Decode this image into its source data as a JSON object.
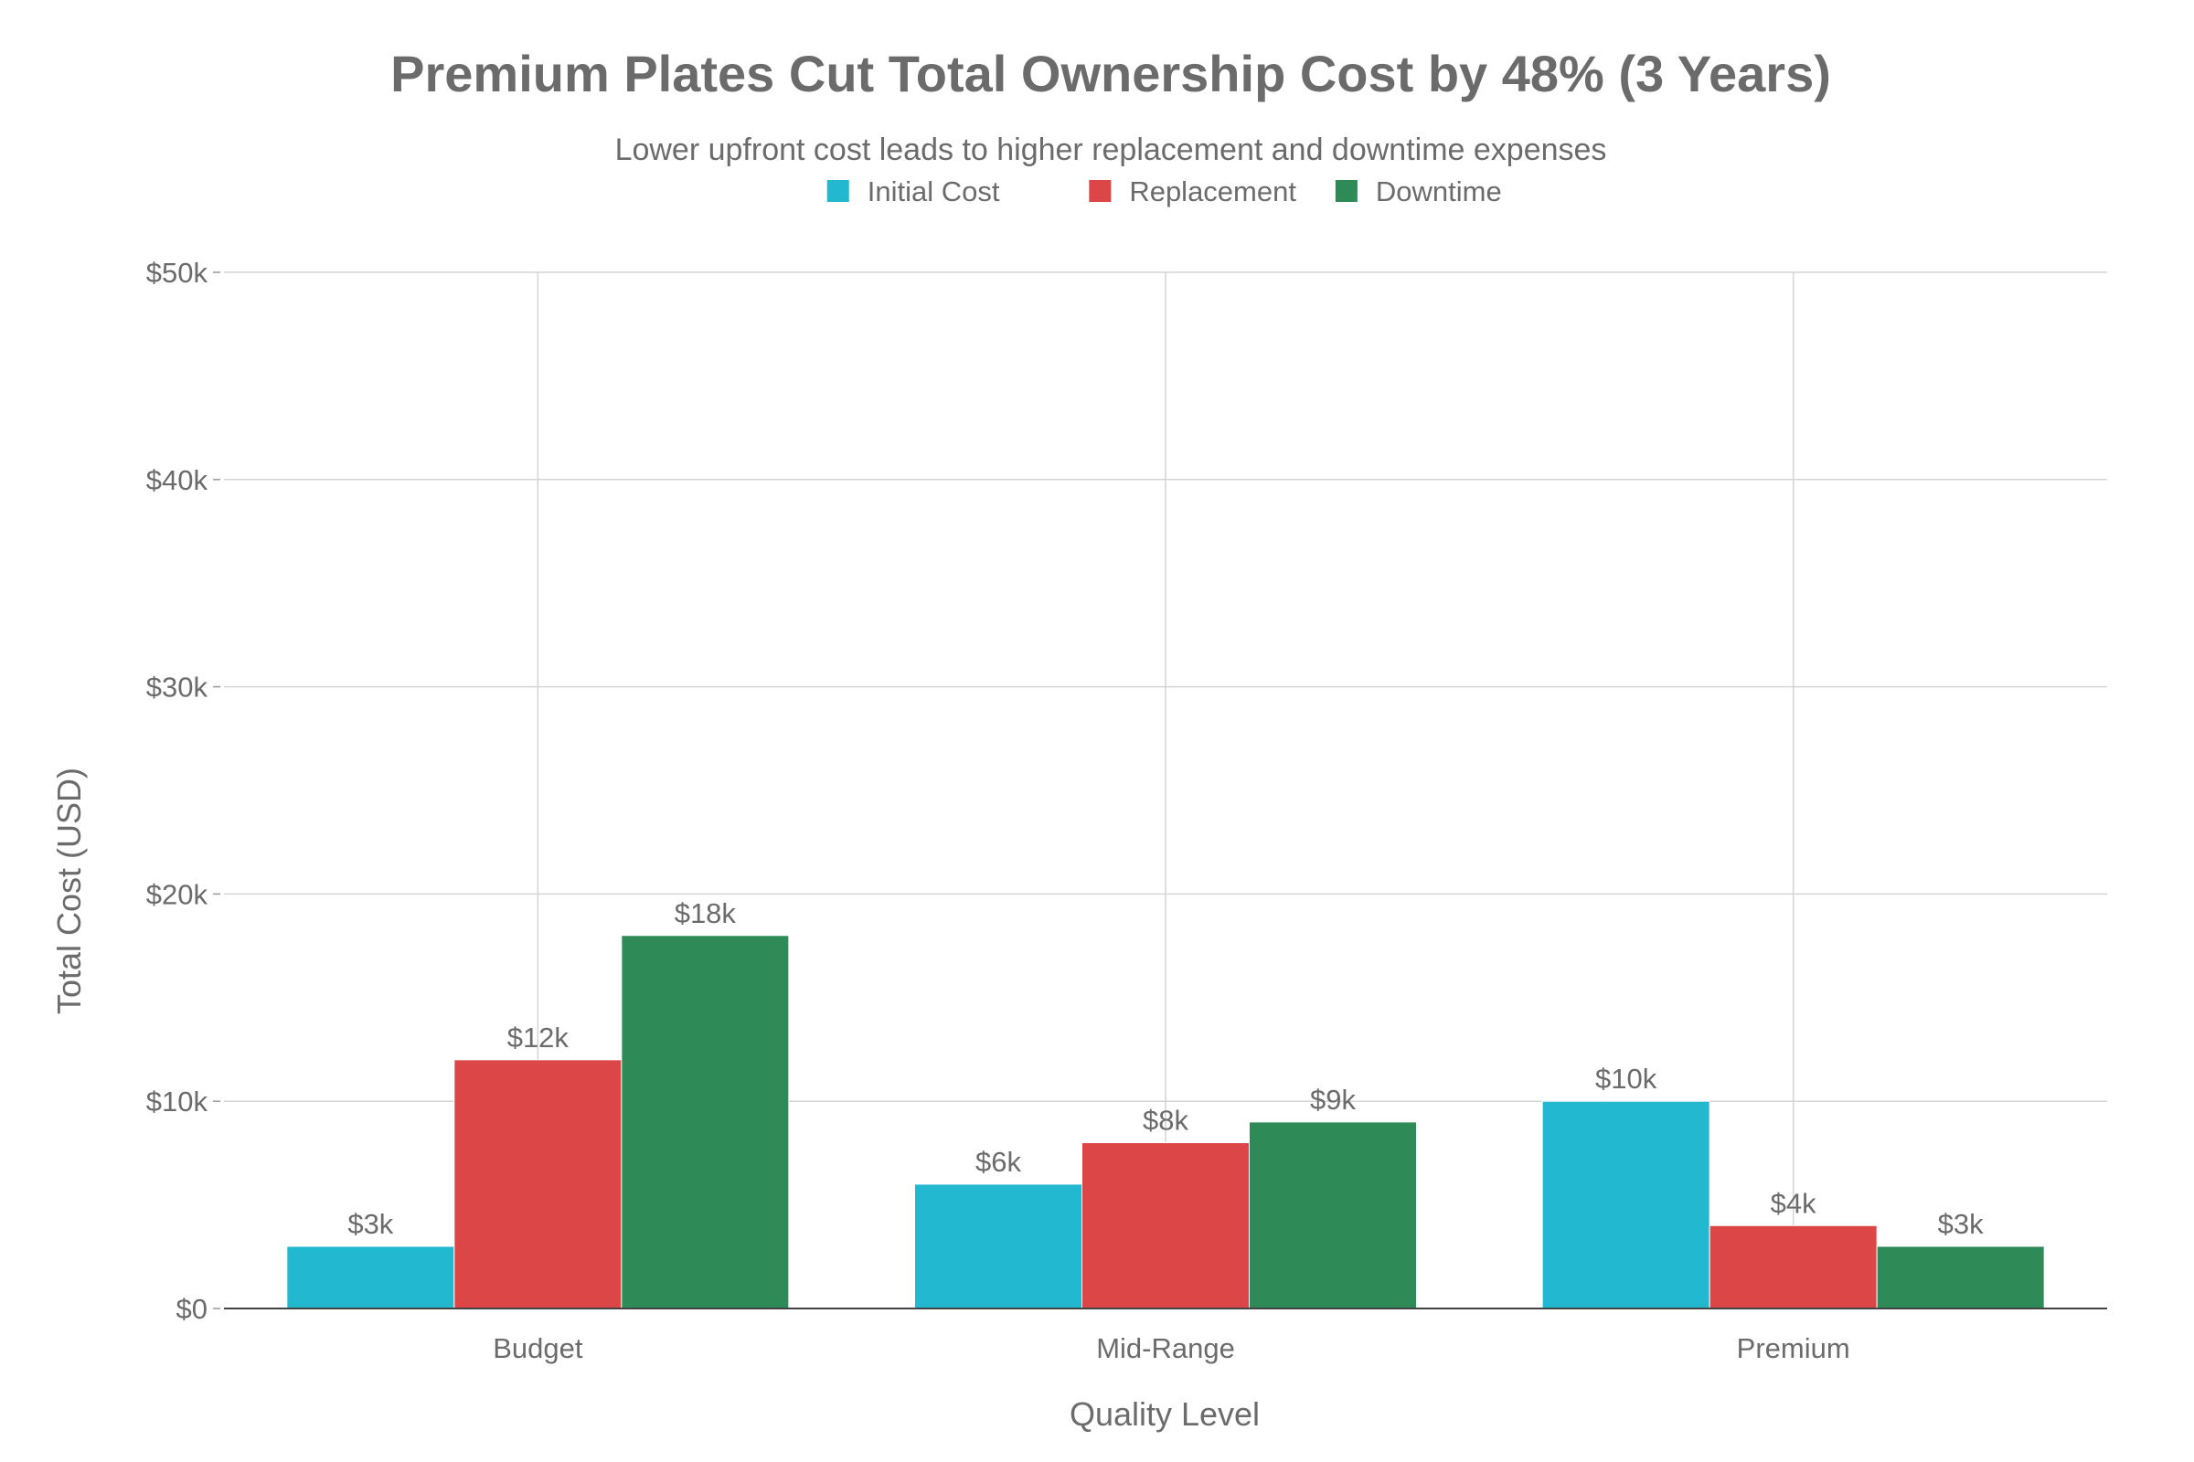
{
  "chart_data": {
    "type": "bar",
    "title": "Premium Plates Cut Total Ownership Cost by 48% (3 Years)",
    "subtitle": "Lower upfront cost leads to higher replacement and downtime expenses",
    "xlabel": "Quality Level",
    "ylabel": "Total Cost (USD)",
    "categories": [
      "Budget",
      "Mid-Range",
      "Premium"
    ],
    "series": [
      {
        "name": "Initial Cost",
        "color": "#22b8cf",
        "values": [
          3000,
          6000,
          10000
        ],
        "labels": [
          "$3k",
          "$6k",
          "$10k"
        ]
      },
      {
        "name": "Replacement",
        "color": "#dc4646",
        "values": [
          12000,
          8000,
          4000
        ],
        "labels": [
          "$12k",
          "$8k",
          "$4k"
        ]
      },
      {
        "name": "Downtime",
        "color": "#2e8b57",
        "values": [
          18000,
          9000,
          3000
        ],
        "labels": [
          "$18k",
          "$9k",
          "$3k"
        ]
      }
    ],
    "ylim": [
      0,
      50000
    ],
    "yticks": [
      0,
      10000,
      20000,
      30000,
      40000,
      50000
    ],
    "ytick_labels": [
      "$0",
      "$10k",
      "$20k",
      "$30k",
      "$40k",
      "$50k"
    ],
    "grid": true,
    "legend_position": "top-center"
  }
}
